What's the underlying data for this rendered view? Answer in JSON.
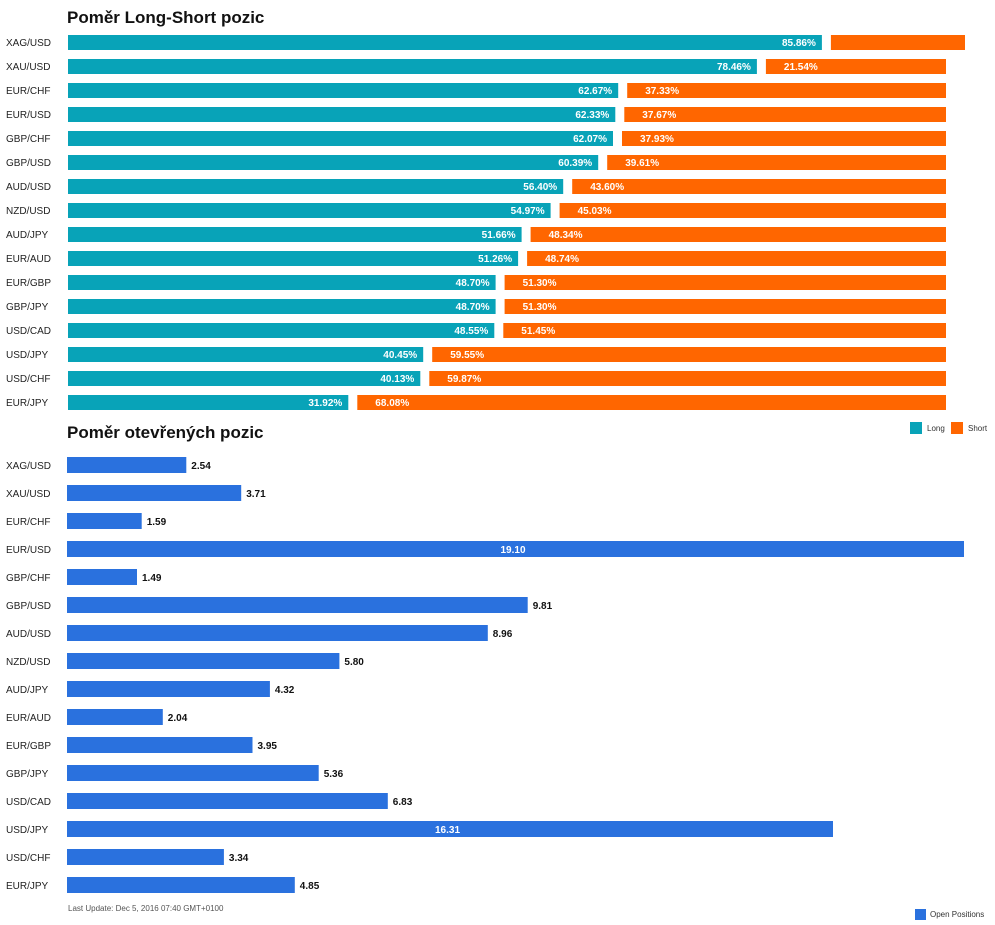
{
  "colors": {
    "long": "#08a3b8",
    "short": "#ff6600",
    "open": "#2a71de"
  },
  "footer": {
    "last_update": "Last Update: Dec 5, 2016 07:40 GMT+0100"
  },
  "chart_data": [
    {
      "type": "bar",
      "orientation": "horizontal",
      "stacked": "percent",
      "title": "Poměr Long-Short pozic",
      "categories": [
        "XAG/USD",
        "XAU/USD",
        "EUR/CHF",
        "EUR/USD",
        "GBP/CHF",
        "GBP/USD",
        "AUD/USD",
        "NZD/USD",
        "AUD/JPY",
        "EUR/AUD",
        "EUR/GBP",
        "GBP/JPY",
        "USD/CAD",
        "USD/JPY",
        "USD/CHF",
        "EUR/JPY"
      ],
      "series": [
        {
          "name": "Long",
          "values": [
            85.86,
            78.46,
            62.67,
            62.33,
            62.07,
            60.39,
            56.4,
            54.97,
            51.66,
            51.26,
            48.7,
            48.7,
            48.55,
            40.45,
            40.13,
            31.92
          ],
          "labels": [
            "85.86%",
            "78.46%",
            "62.67%",
            "62.33%",
            "62.07%",
            "60.39%",
            "56.40%",
            "54.97%",
            "51.66%",
            "51.26%",
            "48.70%",
            "48.70%",
            "48.55%",
            "40.45%",
            "40.13%",
            "31.92%"
          ]
        },
        {
          "name": "Short",
          "values": [
            14.14,
            21.54,
            37.33,
            37.67,
            37.93,
            39.61,
            43.6,
            45.03,
            48.34,
            48.74,
            51.3,
            51.3,
            51.45,
            59.55,
            59.87,
            68.08
          ],
          "labels": [
            "",
            "21.54%",
            "37.33%",
            "37.67%",
            "37.93%",
            "39.61%",
            "43.60%",
            "45.03%",
            "48.34%",
            "48.74%",
            "51.30%",
            "51.30%",
            "51.45%",
            "59.55%",
            "59.87%",
            "68.08%"
          ]
        }
      ],
      "legend_position": "bottom-right",
      "grid": false
    },
    {
      "type": "bar",
      "orientation": "horizontal",
      "title": "Poměr otevřených pozic",
      "categories": [
        "XAG/USD",
        "XAU/USD",
        "EUR/CHF",
        "EUR/USD",
        "GBP/CHF",
        "GBP/USD",
        "AUD/USD",
        "NZD/USD",
        "AUD/JPY",
        "EUR/AUD",
        "EUR/GBP",
        "GBP/JPY",
        "USD/CAD",
        "USD/JPY",
        "USD/CHF",
        "EUR/JPY"
      ],
      "series": [
        {
          "name": "Open Positions",
          "values": [
            2.54,
            3.71,
            1.59,
            19.1,
            1.49,
            9.81,
            8.96,
            5.8,
            4.32,
            2.04,
            3.95,
            5.36,
            6.83,
            16.31,
            3.34,
            4.85
          ],
          "labels": [
            "2.54",
            "3.71",
            "1.59",
            "19.10",
            "1.49",
            "9.81",
            "8.96",
            "5.80",
            "4.32",
            "2.04",
            "3.95",
            "5.36",
            "6.83",
            "16.31",
            "3.34",
            "4.85"
          ]
        }
      ],
      "xlim": [
        0,
        19.1
      ],
      "legend_position": "bottom-right",
      "grid": false
    }
  ]
}
